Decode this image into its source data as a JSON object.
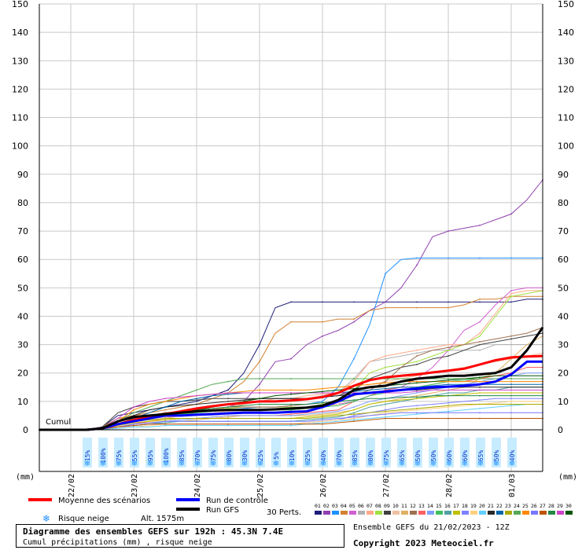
{
  "chart_data": {
    "type": "line",
    "ylim": [
      0,
      150
    ],
    "y_ticks": [
      0,
      10,
      20,
      30,
      40,
      50,
      60,
      70,
      80,
      90,
      100,
      110,
      120,
      130,
      140,
      150
    ],
    "unit_left": "(mm)",
    "unit_right": "(mm)",
    "cumul_label": "Cumul",
    "x_ticks": [
      "22/02",
      "23/02",
      "24/02",
      "25/02",
      "26/02",
      "27/02",
      "28/02",
      "01/03"
    ],
    "x_hours_per_tick": 24,
    "x_range_hours": [
      0,
      192
    ],
    "grid": true,
    "snow_risk": [
      "15%",
      "100%",
      "75%",
      "55%",
      "95%",
      "100%",
      "85%",
      "70%",
      "75%",
      "80%",
      "30%",
      "25%",
      "5%",
      "10%",
      "25%",
      "40%",
      "70%",
      "85%",
      "80%",
      "75%",
      "65%",
      "50%",
      "50%",
      "60%",
      "60%",
      "65%",
      "50%",
      "40%"
    ],
    "snow_risk_start_hour": 18,
    "snow_risk_step_hours": 6,
    "series_hours": [
      0,
      6,
      12,
      18,
      24,
      30,
      36,
      42,
      48,
      54,
      60,
      66,
      72,
      78,
      84,
      90,
      96,
      102,
      108,
      114,
      120,
      126,
      132,
      138,
      144,
      150,
      156,
      162,
      168,
      174,
      180,
      186,
      192
    ],
    "series": [
      {
        "name": "Moyenne des scénarios",
        "color": "#ff0000",
        "width": 3,
        "values": [
          0,
          0,
          0,
          0,
          0.5,
          2,
          3.5,
          4.5,
          5.5,
          6.5,
          7.5,
          8.3,
          9,
          9.5,
          10,
          10,
          10.3,
          10.8,
          11.5,
          13,
          15.5,
          17.5,
          18.5,
          19,
          19.5,
          20.2,
          20.8,
          21.5,
          23,
          24.5,
          25.5,
          25.8,
          26
        ]
      },
      {
        "name": "Run de contrôle",
        "color": "#0000ff",
        "width": 3,
        "values": [
          0,
          0,
          0,
          0,
          0.5,
          2,
          3,
          4,
          5,
          5,
          5.3,
          5.5,
          5.8,
          6,
          6,
          6,
          6.3,
          6.5,
          8,
          10,
          12.5,
          13,
          13.5,
          14,
          14.5,
          15,
          15.2,
          15.5,
          16,
          17,
          19.5,
          24,
          24
        ]
      },
      {
        "name": "Run GFS",
        "color": "#000000",
        "width": 3,
        "values": [
          0,
          0,
          0,
          0,
          0.5,
          3,
          4.5,
          5,
          5.5,
          6,
          6.5,
          6.8,
          7,
          7,
          7,
          7.2,
          7.5,
          7.8,
          8.5,
          10.5,
          14,
          15,
          15.5,
          17,
          18,
          18.5,
          19,
          19,
          19.5,
          20,
          22,
          28,
          36
        ]
      }
    ],
    "members_count": 30,
    "member_values": [
      [
        0,
        0,
        0,
        0,
        1,
        5,
        6,
        7,
        8,
        9,
        10,
        12,
        14,
        20,
        30,
        43,
        45,
        45,
        45,
        45,
        45,
        45,
        45,
        45,
        45,
        45,
        45,
        45,
        45,
        45,
        45,
        46,
        46
      ],
      [
        0,
        0,
        0,
        0,
        0.5,
        4,
        4.5,
        5,
        6,
        6,
        6.5,
        7,
        8,
        10,
        16,
        24,
        25,
        30,
        33,
        35,
        38,
        42,
        45,
        50,
        58,
        68,
        70,
        71,
        72,
        74,
        76,
        81,
        88
      ],
      [
        0,
        0,
        0,
        0,
        0.5,
        2,
        3,
        4,
        4.5,
        5,
        6,
        6.5,
        7,
        7.5,
        8,
        8,
        8.5,
        9,
        10,
        15,
        25,
        37,
        55,
        60,
        60.5,
        60.5,
        60.5,
        60.5,
        60.5,
        60.5,
        60.5,
        60.5,
        60.5
      ],
      [
        0,
        0,
        0,
        0,
        1,
        4,
        5,
        6,
        7,
        8,
        9,
        11,
        13,
        17,
        24,
        34,
        38,
        38,
        38,
        39,
        39,
        42,
        43,
        43,
        43,
        43,
        43,
        44,
        46,
        46,
        47,
        47,
        47
      ],
      [
        0,
        0,
        0,
        0,
        0.5,
        1,
        2,
        3,
        4,
        5,
        6,
        7,
        8,
        8,
        8,
        8,
        8,
        8,
        8.5,
        9,
        10,
        12,
        14,
        15,
        18,
        22,
        28,
        35,
        38,
        44,
        49,
        50,
        50
      ],
      [
        0,
        0,
        0,
        0,
        0.5,
        1,
        2,
        3,
        4,
        5,
        6,
        7,
        8,
        9,
        10,
        11,
        11,
        11,
        12,
        13,
        18,
        24,
        25,
        26,
        27,
        28,
        28,
        28,
        28,
        30,
        30,
        30,
        30
      ],
      [
        0,
        0,
        0,
        0,
        0.5,
        1,
        2,
        3,
        4,
        5,
        6,
        7,
        8,
        9,
        10,
        11,
        11,
        12,
        12.5,
        13,
        17,
        24,
        26,
        27,
        28,
        29,
        30,
        30,
        34,
        41,
        48,
        49,
        49
      ],
      [
        0,
        0,
        0,
        0,
        0.5,
        2,
        3,
        4,
        5,
        6,
        6.5,
        7,
        7.5,
        8,
        8,
        8,
        8,
        8,
        9,
        10,
        14,
        20,
        22,
        23,
        24,
        26,
        28,
        30,
        33,
        40,
        47,
        48,
        49
      ],
      [
        0,
        0,
        0,
        0,
        1,
        6,
        8,
        9,
        10,
        10,
        10.5,
        11,
        11,
        11,
        11,
        11,
        11,
        11,
        11.5,
        12,
        14,
        18,
        20,
        22,
        23,
        25,
        26,
        28,
        30,
        31,
        32,
        33,
        34
      ],
      [
        0,
        0,
        0,
        0,
        0.5,
        2,
        3,
        4,
        4.5,
        5,
        5.5,
        6,
        6.5,
        7,
        7,
        7,
        7,
        7.5,
        8,
        9,
        13,
        16,
        17,
        18,
        19,
        20,
        21,
        22,
        23,
        24,
        25,
        26,
        27
      ],
      [
        0,
        0,
        0,
        0,
        0.5,
        1,
        2,
        2.5,
        3,
        3,
        3.5,
        4,
        4.5,
        5,
        5,
        5,
        5,
        5,
        5.5,
        6,
        7,
        9,
        10,
        11,
        12,
        13,
        14,
        15,
        18,
        20,
        25,
        30,
        33
      ],
      [
        0,
        0,
        0,
        0,
        0.5,
        2,
        4,
        5,
        6,
        6.5,
        7,
        7.5,
        8,
        8,
        8,
        8,
        8.5,
        9,
        9.5,
        10,
        12,
        14,
        17,
        22,
        26,
        28,
        29,
        30,
        31,
        32,
        33,
        34,
        36
      ],
      [
        0,
        0,
        0,
        0,
        0.5,
        1,
        2,
        3,
        3.5,
        4,
        4,
        4.5,
        5,
        5,
        5,
        5,
        5.5,
        6,
        6.5,
        7,
        10,
        12,
        14,
        15,
        15,
        16,
        17,
        17,
        18,
        19,
        20,
        22,
        22
      ],
      [
        0,
        0,
        0,
        0,
        0.5,
        1,
        1.5,
        2,
        3,
        3.5,
        4,
        4.5,
        5,
        5,
        5,
        5,
        5,
        5.5,
        6,
        6.5,
        8,
        10,
        11,
        12,
        13,
        14,
        15,
        16,
        17,
        18,
        19,
        20,
        20
      ],
      [
        0,
        0,
        0,
        0,
        0.5,
        2,
        3,
        4,
        5,
        5.5,
        6,
        6.5,
        7,
        7,
        7,
        7,
        7,
        7.5,
        8,
        8.5,
        10,
        12,
        13,
        14,
        15,
        16,
        17,
        17.5,
        18,
        18,
        18,
        18,
        18
      ],
      [
        0,
        0,
        0,
        0,
        0.3,
        1,
        1.5,
        2,
        2.5,
        3,
        3,
        3,
        3,
        3,
        3,
        3,
        3,
        3.5,
        4,
        4.5,
        6,
        8,
        9,
        10,
        11,
        12,
        13,
        13,
        14,
        14,
        15,
        15,
        15
      ],
      [
        0,
        0,
        0,
        0,
        0.5,
        1.5,
        2.5,
        3,
        3.5,
        4,
        4,
        4,
        4,
        4,
        4,
        4,
        4,
        4.5,
        5,
        5.5,
        7,
        9,
        10,
        10.5,
        11,
        11.5,
        12,
        12.5,
        13,
        13,
        13,
        13,
        13
      ],
      [
        0,
        0,
        0,
        0,
        0.3,
        1,
        1.5,
        2,
        2,
        2,
        2,
        2,
        2,
        2,
        2,
        2,
        2,
        2.5,
        3,
        3.5,
        5,
        6,
        7,
        8,
        8.5,
        9,
        9.5,
        10,
        10.5,
        11,
        11,
        11,
        11
      ],
      [
        0,
        0,
        0,
        0,
        0.3,
        0.5,
        1,
        1.5,
        2,
        2,
        2,
        2,
        2,
        2,
        2,
        2,
        2,
        2.5,
        3,
        3.5,
        4,
        5,
        6,
        6.5,
        7,
        7.5,
        8,
        8.5,
        9,
        9.5,
        10,
        10,
        10
      ],
      [
        0,
        0,
        0,
        0,
        0.2,
        0.5,
        1,
        1,
        1.5,
        1.5,
        1.5,
        1.5,
        1.5,
        1.5,
        1.5,
        1.5,
        1.5,
        2,
        2.5,
        3,
        3.5,
        4,
        4.5,
        5,
        5.5,
        6,
        6.5,
        7,
        7.5,
        8,
        8.5,
        9,
        9
      ],
      [
        0,
        0,
        0,
        0,
        0.5,
        3,
        5,
        7,
        8,
        8.5,
        9,
        9.5,
        10,
        10.5,
        11,
        11,
        11,
        11,
        11.5,
        12,
        12.5,
        13,
        13.5,
        14,
        14,
        14.5,
        15,
        15,
        15,
        15,
        15,
        15,
        15
      ],
      [
        0,
        0,
        0,
        0,
        0.5,
        2,
        4,
        6,
        8,
        10,
        11,
        12,
        12.5,
        13,
        13,
        13,
        13,
        13,
        13,
        13,
        13.5,
        14,
        14.5,
        15,
        15,
        15.5,
        16,
        16,
        16,
        16,
        16,
        16,
        16
      ],
      [
        0,
        0,
        0,
        0,
        0.5,
        2,
        3,
        3.5,
        4,
        4,
        4,
        4,
        4,
        4,
        4,
        4,
        4,
        4,
        4.5,
        5,
        5.5,
        6,
        6.5,
        7,
        7.5,
        8,
        8.5,
        9,
        9,
        9,
        9,
        9,
        9
      ],
      [
        0,
        0,
        0,
        0,
        0.5,
        3,
        6,
        8,
        10,
        12,
        14,
        16,
        17,
        18,
        18,
        18,
        18,
        18,
        18,
        18,
        18,
        18,
        18,
        18,
        18,
        18,
        18,
        18,
        18,
        18,
        18,
        18,
        18
      ],
      [
        0,
        0,
        0,
        0,
        0.5,
        3,
        7,
        9,
        10,
        11,
        12,
        12.5,
        13,
        13.5,
        14,
        14,
        14,
        14,
        14.5,
        15,
        15.5,
        16,
        16.5,
        17,
        17,
        17,
        17,
        17,
        17,
        17,
        17,
        17,
        17
      ],
      [
        0,
        0,
        0,
        0,
        0.3,
        1,
        2,
        2.5,
        3,
        3,
        3,
        3,
        3,
        3,
        3,
        3,
        3,
        3,
        3.5,
        4,
        4.5,
        5,
        5.5,
        6,
        6,
        6,
        6,
        6,
        6,
        6,
        6,
        6,
        6
      ],
      [
        0,
        0,
        0,
        0,
        0.3,
        1,
        1.5,
        2,
        2,
        2,
        2,
        2,
        2,
        2,
        2,
        2,
        2,
        2,
        2,
        2.5,
        3,
        3.5,
        4,
        4,
        4,
        4,
        4,
        4,
        4,
        4,
        4,
        4,
        4
      ],
      [
        0,
        0,
        0,
        0,
        0.5,
        2,
        3,
        4,
        5,
        6,
        7,
        7.5,
        8,
        8.5,
        9,
        9,
        9,
        9,
        9.5,
        10,
        10.5,
        11,
        11,
        11.5,
        11.5,
        12,
        12,
        12,
        12,
        12,
        12,
        12,
        12
      ],
      [
        0,
        0,
        0,
        0,
        0.5,
        4,
        8,
        10,
        11,
        11.5,
        12,
        12.5,
        13,
        13,
        13,
        13,
        13,
        13,
        13,
        13,
        13,
        13,
        13,
        13,
        13.5,
        14,
        14,
        14,
        14,
        14,
        14,
        14,
        14
      ],
      [
        0,
        0,
        0,
        0,
        0.5,
        2,
        3,
        4,
        5,
        6,
        7,
        8,
        9,
        10,
        11,
        12,
        12.5,
        13,
        13.5,
        14,
        14.5,
        15,
        15.5,
        16,
        16.5,
        17,
        17.5,
        18,
        18.5,
        19,
        19,
        19,
        19
      ]
    ],
    "member_colors": [
      "#1e1e78",
      "#9040b0",
      "#1e90ff",
      "#d28232",
      "#d060d0",
      "#b0b0b0",
      "#ffaa88",
      "#a0e040",
      "#404040",
      "#f0c0a0",
      "#e0b060",
      "#a07050",
      "#ff6060",
      "#80a0ff",
      "#40c060",
      "#50a0a0",
      "#c0c000",
      "#8080ff",
      "#ffd080",
      "#60d0ff",
      "#2a2a2a",
      "#0066aa",
      "#aaaa00",
      "#55aa55",
      "#ff8800",
      "#7777ff",
      "#bb5500",
      "#228844",
      "#cc44cc",
      "#005500"
    ],
    "legend": {
      "mean": "Moyenne des scénarios",
      "control": "Run de contrôle",
      "gfs": "Run GFS",
      "snow": "Risque neige",
      "alt": "Alt. 1575m",
      "perts": "30 Perts.",
      "member_labels": [
        "01",
        "02",
        "03",
        "04",
        "05",
        "06",
        "07",
        "08",
        "09",
        "10",
        "11",
        "12",
        "13",
        "14",
        "15",
        "16",
        "17",
        "18",
        "19",
        "20",
        "21",
        "22",
        "23",
        "24",
        "25",
        "26",
        "27",
        "28",
        "29",
        "30"
      ]
    },
    "title": "Diagramme des ensembles GEFS sur 192h : 45.3N 7.4E",
    "subtitle": "Cumul précipitations (mm) , risque neige",
    "run_info": "Ensemble GEFS du 21/02/2023 - 12Z",
    "copyright": "Copyright 2023 Meteociel.fr"
  }
}
